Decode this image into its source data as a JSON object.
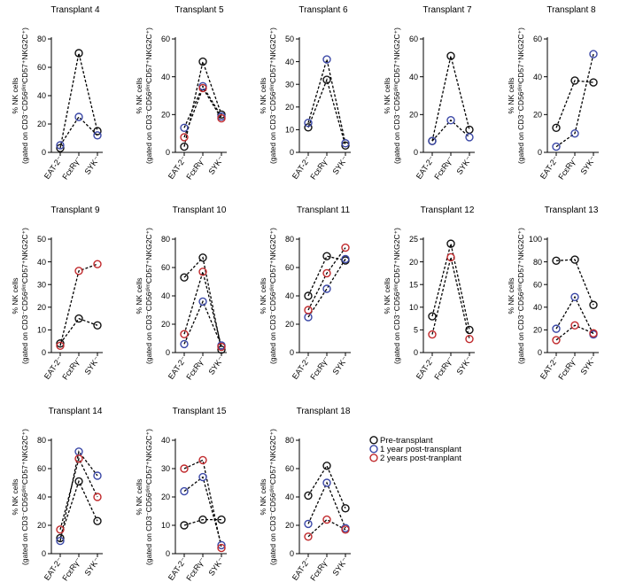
{
  "legend": [
    {
      "label": "Pre-transplant",
      "color": "#111111"
    },
    {
      "label": "1 year post-transplant",
      "color": "#3a47a6"
    },
    {
      "label": "2 years post-tranplant",
      "color": "#c0282b"
    }
  ],
  "chart_data": [
    {
      "type": "line",
      "title": "Transplant 4",
      "ylim": [
        0,
        80
      ],
      "yticks": [
        0,
        20,
        40,
        60,
        80
      ],
      "ylabel_line1": "% NK cells",
      "ylabel_line2": "(gated on CD3⁻CD56ᵈⁱᵐCD57⁺NKG2C⁺)",
      "categories": [
        "EAT-2⁻",
        "FcεRγ⁻",
        "SYK⁻"
      ],
      "series": [
        {
          "color": "#111111",
          "values": [
            3,
            70,
            15
          ]
        },
        {
          "color": "#3a47a6",
          "values": [
            5,
            25,
            12
          ]
        }
      ]
    },
    {
      "type": "line",
      "title": "Transplant 5",
      "ylim": [
        0,
        60
      ],
      "yticks": [
        0,
        20,
        40,
        60
      ],
      "ylabel_line1": "% NK cells",
      "ylabel_line2": "(gated on CD3⁻CD56ᵈⁱᵐCD57⁺NKG2C⁺)",
      "categories": [
        "EAT-2⁻",
        "FcεRγ⁻",
        "SYK⁻"
      ],
      "series": [
        {
          "color": "#111111",
          "values": [
            3,
            48,
            20
          ]
        },
        {
          "color": "#3a47a6",
          "values": [
            13,
            35,
            19
          ]
        },
        {
          "color": "#c0282b",
          "values": [
            8,
            34,
            18
          ]
        }
      ]
    },
    {
      "type": "line",
      "title": "Transplant 6",
      "ylim": [
        0,
        50
      ],
      "yticks": [
        0,
        10,
        20,
        30,
        40,
        50
      ],
      "ylabel_line1": "% NK cells",
      "ylabel_line2": "(gated on CD3⁻CD56ᵈⁱᵐCD57⁺NKG2C⁺)",
      "categories": [
        "EAT-2⁻",
        "FcεRγ⁻",
        "SYK⁻"
      ],
      "series": [
        {
          "color": "#111111",
          "values": [
            11,
            32,
            3
          ]
        },
        {
          "color": "#3a47a6",
          "values": [
            13,
            41,
            4
          ]
        }
      ]
    },
    {
      "type": "line",
      "title": "Transplant 7",
      "ylim": [
        0,
        60
      ],
      "yticks": [
        0,
        20,
        40,
        60
      ],
      "ylabel_line1": "% NK cells",
      "ylabel_line2": "(gated on CD3⁻CD56ᵈⁱᵐCD57⁺NKG2C⁺)",
      "categories": [
        "EAT-2⁻",
        "FcεRγ⁻",
        "SYK⁻"
      ],
      "series": [
        {
          "color": "#111111",
          "values": [
            6,
            51,
            12
          ]
        },
        {
          "color": "#3a47a6",
          "values": [
            6,
            17,
            8
          ]
        }
      ]
    },
    {
      "type": "line",
      "title": "Transplant 8",
      "ylim": [
        0,
        60
      ],
      "yticks": [
        0,
        20,
        40,
        60
      ],
      "ylabel_line1": "% NK cells",
      "ylabel_line2": "(gated on CD3⁻CD56ᵈⁱᵐCD57⁺NKG2C⁺)",
      "categories": [
        "EAT-2⁻",
        "FcεRγ⁻",
        "SYK⁻"
      ],
      "series": [
        {
          "color": "#111111",
          "values": [
            13,
            38,
            37
          ]
        },
        {
          "color": "#3a47a6",
          "values": [
            3,
            10,
            52
          ]
        }
      ]
    },
    {
      "type": "line",
      "title": "Transplant 9",
      "ylim": [
        0,
        50
      ],
      "yticks": [
        0,
        10,
        20,
        30,
        40,
        50
      ],
      "ylabel_line1": "% NK cells",
      "ylabel_line2": "(gated on CD3⁻CD56ᵈⁱᵐCD57⁺NKG2C⁺)",
      "categories": [
        "EAT-2⁻",
        "FcεRγ⁻",
        "SYK⁻"
      ],
      "series": [
        {
          "color": "#111111",
          "values": [
            4,
            15,
            12
          ]
        },
        {
          "color": "#c0282b",
          "values": [
            3,
            36,
            39
          ]
        }
      ]
    },
    {
      "type": "line",
      "title": "Transplant 10",
      "ylim": [
        0,
        80
      ],
      "yticks": [
        0,
        20,
        40,
        60,
        80
      ],
      "ylabel_line1": "% NK cells",
      "ylabel_line2": "(gated on CD3⁻CD56ᵈⁱᵐCD57⁺NKG2C⁺)",
      "categories": [
        "EAT-2⁻",
        "FcεRγ⁻",
        "SYK⁻"
      ],
      "series": [
        {
          "color": "#111111",
          "values": [
            53,
            67,
            2
          ]
        },
        {
          "color": "#3a47a6",
          "values": [
            6,
            36,
            5
          ]
        },
        {
          "color": "#c0282b",
          "values": [
            13,
            57,
            4
          ]
        }
      ]
    },
    {
      "type": "line",
      "title": "Transplant 11",
      "ylim": [
        0,
        80
      ],
      "yticks": [
        0,
        20,
        40,
        60,
        80
      ],
      "ylabel_line1": "% NK cells",
      "ylabel_line2": "(gated on CD3⁻CD56ᵈⁱᵐCD57⁺NKG2C⁺)",
      "categories": [
        "EAT-2⁻",
        "FcεRγ⁻",
        "SYK⁻"
      ],
      "series": [
        {
          "color": "#111111",
          "values": [
            40,
            68,
            65
          ]
        },
        {
          "color": "#3a47a6",
          "values": [
            25,
            45,
            66
          ]
        },
        {
          "color": "#c0282b",
          "values": [
            30,
            56,
            74
          ]
        }
      ]
    },
    {
      "type": "line",
      "title": "Transplant 12",
      "ylim": [
        0,
        25
      ],
      "yticks": [
        0,
        5,
        10,
        15,
        20,
        25
      ],
      "ylabel_line1": "% NK cells",
      "ylabel_line2": "(gated on CD3⁻CD56ᵈⁱᵐCD57⁺NKG2C⁺)",
      "categories": [
        "EAT-2⁻",
        "FcεRγ⁻",
        "SYK⁻"
      ],
      "series": [
        {
          "color": "#111111",
          "values": [
            8,
            24,
            5
          ]
        },
        {
          "color": "#c0282b",
          "values": [
            4,
            21,
            3
          ]
        }
      ]
    },
    {
      "type": "line",
      "title": "Transplant 13",
      "ylim": [
        0,
        100
      ],
      "yticks": [
        0,
        20,
        40,
        60,
        80,
        100
      ],
      "ylabel_line1": "% NK cells",
      "ylabel_line2": "(gated on CD3⁻CD56ᵈⁱᵐCD57⁺NKG2C⁺)",
      "categories": [
        "EAT-2⁻",
        "FcεRγ⁻",
        "SYK⁻"
      ],
      "series": [
        {
          "color": "#111111",
          "values": [
            81,
            82,
            42
          ]
        },
        {
          "color": "#3a47a6",
          "values": [
            21,
            49,
            16
          ]
        },
        {
          "color": "#c0282b",
          "values": [
            11,
            24,
            17
          ]
        }
      ]
    },
    {
      "type": "line",
      "title": "Transplant 14",
      "ylim": [
        0,
        80
      ],
      "yticks": [
        0,
        20,
        40,
        60,
        80
      ],
      "ylabel_line1": "% NK cells",
      "ylabel_line2": "(gated on CD3⁻CD56ᵈⁱᵐCD57⁺NKG2C⁺)",
      "categories": [
        "EAT-2⁻",
        "FcεRγ⁻",
        "SYK⁻"
      ],
      "series": [
        {
          "color": "#111111",
          "values": [
            11,
            51,
            23
          ]
        },
        {
          "color": "#3a47a6",
          "values": [
            9,
            72,
            55
          ]
        },
        {
          "color": "#c0282b",
          "values": [
            17,
            67,
            40
          ]
        }
      ]
    },
    {
      "type": "line",
      "title": "Transplant 15",
      "ylim": [
        0,
        40
      ],
      "yticks": [
        0,
        10,
        20,
        30,
        40
      ],
      "ylabel_line1": "% NK cells",
      "ylabel_line2": "(gated on CD3⁻CD56ᵈⁱᵐCD57⁺NKG2C⁺)",
      "categories": [
        "EAT-2⁻",
        "FcεRγ⁻",
        "SYK⁻"
      ],
      "series": [
        {
          "color": "#111111",
          "values": [
            10,
            12,
            12
          ]
        },
        {
          "color": "#3a47a6",
          "values": [
            22,
            27,
            3
          ]
        },
        {
          "color": "#c0282b",
          "values": [
            30,
            33,
            2
          ]
        }
      ]
    },
    {
      "type": "line",
      "title": "Transplant 18",
      "ylim": [
        0,
        80
      ],
      "yticks": [
        0,
        20,
        40,
        60,
        80
      ],
      "ylabel_line1": "% NK cells",
      "ylabel_line2": "(gated on CD3⁻CD56ᵈⁱᵐCD57⁺NKG2C⁺)",
      "categories": [
        "EAT-2⁻",
        "FcεRγ⁻",
        "SYK⁻"
      ],
      "series": [
        {
          "color": "#111111",
          "values": [
            41,
            62,
            32
          ]
        },
        {
          "color": "#3a47a6",
          "values": [
            21,
            50,
            18
          ]
        },
        {
          "color": "#c0282b",
          "values": [
            12,
            24,
            17
          ]
        }
      ]
    }
  ]
}
